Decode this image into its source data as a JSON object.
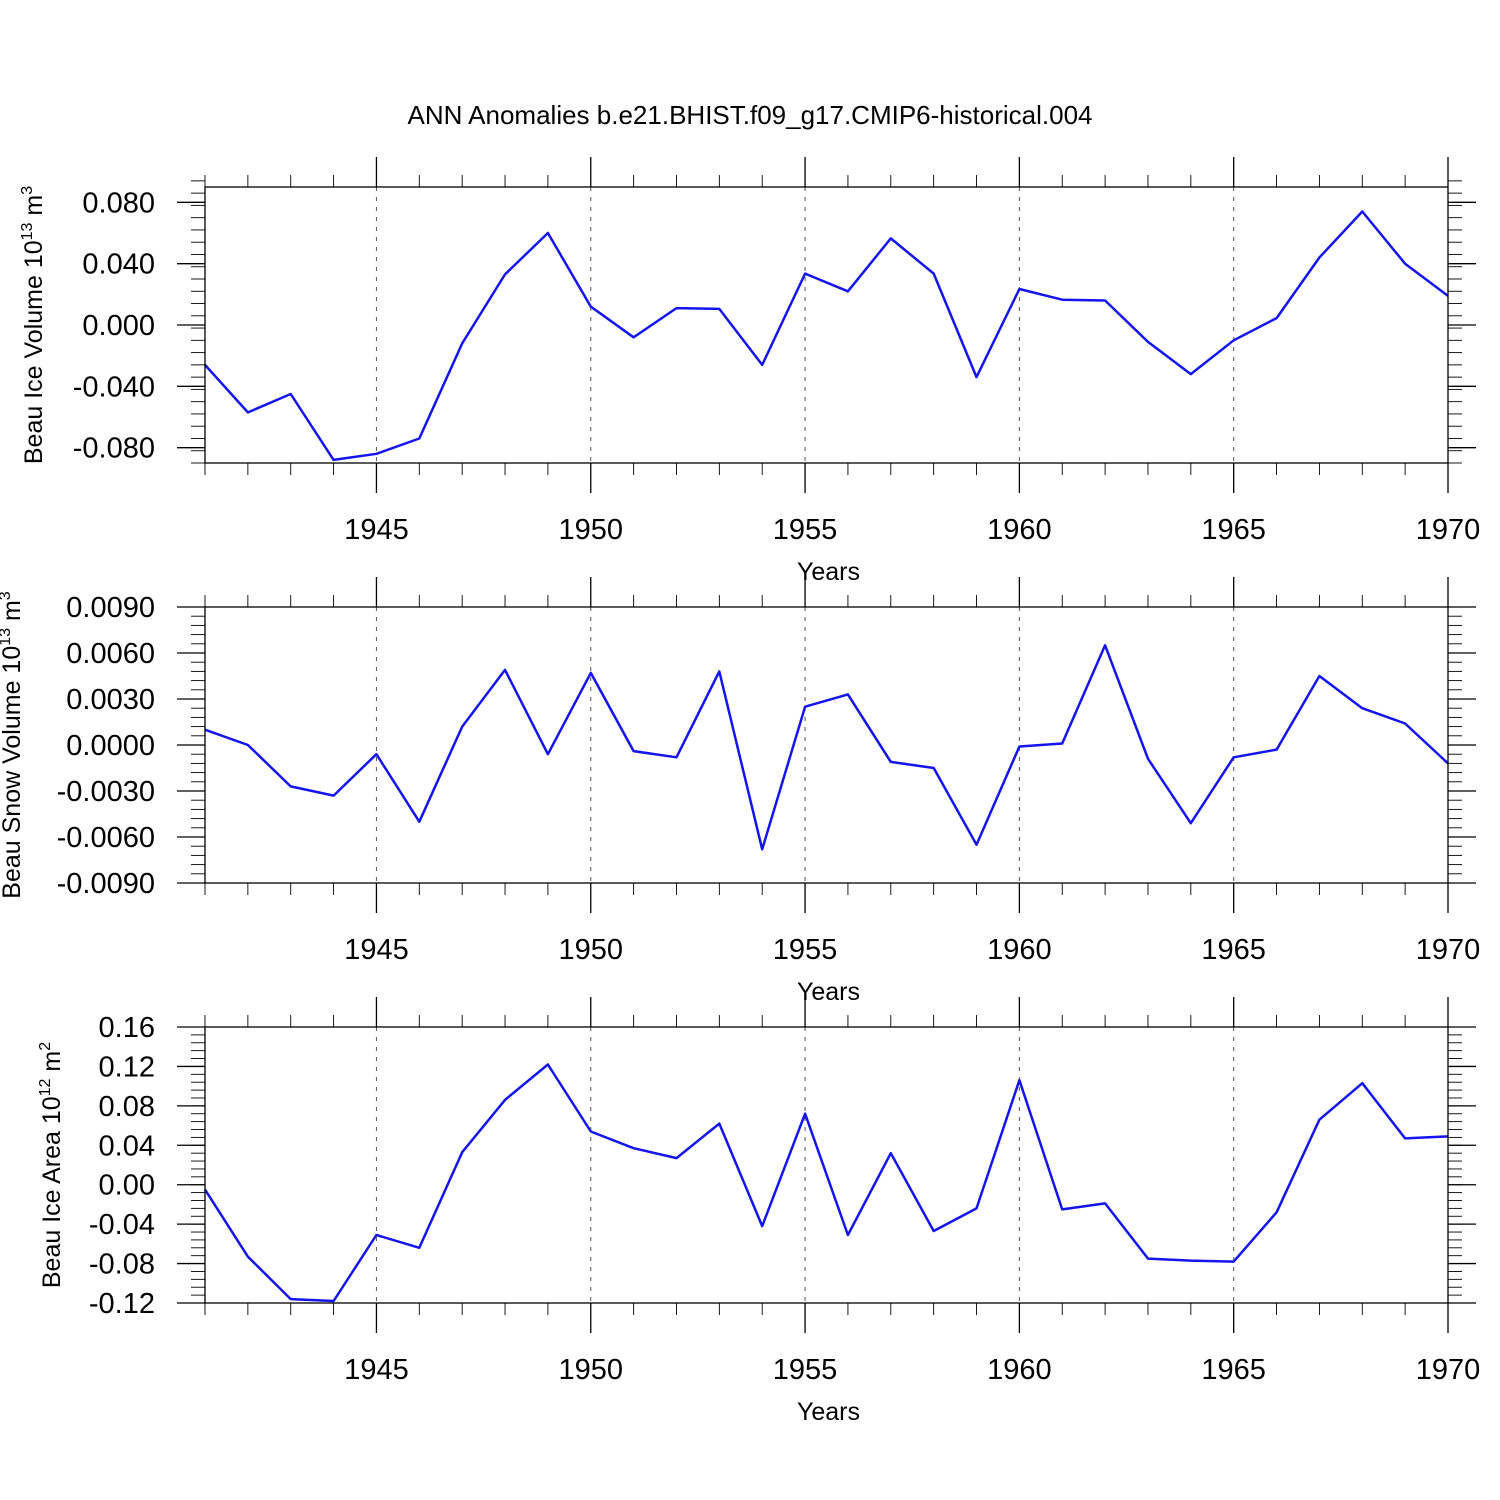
{
  "title": "ANN Anomalies b.e21.BHIST.f09_g17.CMIP6-historical.004",
  "colors": {
    "line": "#1414f0",
    "axis": "#000000",
    "grid": "#555555"
  },
  "chart_data": [
    {
      "type": "line",
      "ylabel": "Beau Ice Volume",
      "ylabel_unit": "10^13 m^3",
      "ylabel_parts": {
        "prefix": "Beau Ice Volume 10",
        "exp1": "13",
        "mid": " m",
        "exp2": "3"
      },
      "xlabel": "Years",
      "xlim": [
        1941,
        1970
      ],
      "ylim": [
        -0.09,
        0.09
      ],
      "x_ticks": [
        1945,
        1950,
        1955,
        1960,
        1965,
        1970
      ],
      "x_tick_labels": [
        "1945",
        "1950",
        "1955",
        "1960",
        "1965",
        "1970"
      ],
      "y_ticks": [
        -0.08,
        -0.04,
        0.0,
        0.04,
        0.08
      ],
      "y_tick_labels": [
        "-0.080",
        "-0.040",
        "0.000",
        "0.040",
        "0.080"
      ],
      "y_minor_step": 0.008,
      "grid": "vertical-dashed-at-major-x",
      "x": [
        1941,
        1942,
        1943,
        1944,
        1945,
        1946,
        1947,
        1948,
        1949,
        1950,
        1951,
        1952,
        1953,
        1954,
        1955,
        1956,
        1957,
        1958,
        1959,
        1960,
        1961,
        1962,
        1963,
        1964,
        1965,
        1966,
        1967,
        1968,
        1969,
        1970
      ],
      "values": [
        -0.026,
        -0.057,
        -0.045,
        -0.088,
        -0.084,
        -0.074,
        -0.012,
        0.033,
        0.06,
        0.012,
        -0.008,
        0.011,
        0.0105,
        -0.026,
        0.0335,
        0.022,
        0.0565,
        0.0335,
        -0.034,
        0.0235,
        0.0165,
        0.016,
        -0.011,
        -0.032,
        -0.01,
        0.0045,
        0.044,
        0.074,
        0.04,
        0.019
      ]
    },
    {
      "type": "line",
      "ylabel": "Beau Snow Volume",
      "ylabel_unit": "10^13 m^3",
      "ylabel_parts": {
        "prefix": "Beau Snow Volume 10",
        "exp1": "13",
        "mid": " m",
        "exp2": "3"
      },
      "xlabel": "Years",
      "xlim": [
        1941,
        1970
      ],
      "ylim": [
        -0.009,
        0.009
      ],
      "x_ticks": [
        1945,
        1950,
        1955,
        1960,
        1965,
        1970
      ],
      "x_tick_labels": [
        "1945",
        "1950",
        "1955",
        "1960",
        "1965",
        "1970"
      ],
      "y_ticks": [
        -0.009,
        -0.006,
        -0.003,
        0.0,
        0.003,
        0.006,
        0.009
      ],
      "y_tick_labels": [
        "-0.0090",
        "-0.0060",
        "-0.0030",
        "0.0000",
        "0.0030",
        "0.0060",
        "0.0090"
      ],
      "y_minor_step": 0.0006,
      "grid": "vertical-dashed-at-major-x",
      "x": [
        1941,
        1942,
        1943,
        1944,
        1945,
        1946,
        1947,
        1948,
        1949,
        1950,
        1951,
        1952,
        1953,
        1954,
        1955,
        1956,
        1957,
        1958,
        1959,
        1960,
        1961,
        1962,
        1963,
        1964,
        1965,
        1966,
        1967,
        1968,
        1969,
        1970
      ],
      "values": [
        0.001,
        0.0,
        -0.0027,
        -0.0033,
        -0.0006,
        -0.005,
        0.0012,
        0.0049,
        -0.0006,
        0.0047,
        -0.0004,
        -0.0008,
        0.0048,
        -0.0068,
        0.0025,
        0.0033,
        -0.0011,
        -0.0015,
        -0.0065,
        -0.0001,
        0.0001,
        0.0065,
        -0.0009,
        -0.0051,
        -0.0008,
        -0.0003,
        0.0045,
        0.0024,
        0.0014,
        -0.0012
      ]
    },
    {
      "type": "line",
      "ylabel": "Beau Ice Area",
      "ylabel_unit": "10^12 m^2",
      "ylabel_parts": {
        "prefix": "Beau Ice Area 10",
        "exp1": "12",
        "mid": " m",
        "exp2": "2"
      },
      "xlabel": "Years",
      "xlim": [
        1941,
        1970
      ],
      "ylim": [
        -0.12,
        0.16
      ],
      "x_ticks": [
        1945,
        1950,
        1955,
        1960,
        1965,
        1970
      ],
      "x_tick_labels": [
        "1945",
        "1950",
        "1955",
        "1960",
        "1965",
        "1970"
      ],
      "y_ticks": [
        -0.12,
        -0.08,
        -0.04,
        0.0,
        0.04,
        0.08,
        0.12,
        0.16
      ],
      "y_tick_labels": [
        "-0.12",
        "-0.08",
        "-0.04",
        "0.00",
        "0.04",
        "0.08",
        "0.12",
        "0.16"
      ],
      "y_minor_step": 0.008,
      "grid": "vertical-dashed-at-major-x",
      "x": [
        1941,
        1942,
        1943,
        1944,
        1945,
        1946,
        1947,
        1948,
        1949,
        1950,
        1951,
        1952,
        1953,
        1954,
        1955,
        1956,
        1957,
        1958,
        1959,
        1960,
        1961,
        1962,
        1963,
        1964,
        1965,
        1966,
        1967,
        1968,
        1969,
        1970
      ],
      "values": [
        -0.005,
        -0.073,
        -0.116,
        -0.118,
        -0.051,
        -0.064,
        0.033,
        0.086,
        0.122,
        0.054,
        0.037,
        0.027,
        0.062,
        -0.042,
        0.072,
        -0.051,
        0.032,
        -0.047,
        -0.024,
        0.106,
        -0.025,
        -0.019,
        -0.075,
        -0.077,
        -0.078,
        -0.028,
        0.066,
        0.103,
        0.047,
        0.049
      ]
    }
  ]
}
